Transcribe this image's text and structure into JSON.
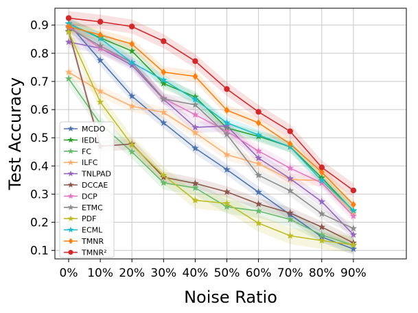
{
  "chart_data": {
    "type": "line",
    "title": "",
    "xlabel": "Noise Ratio",
    "ylabel": "Test Accuracy",
    "categories": [
      "0%",
      "10%",
      "20%",
      "30%",
      "40%",
      "50%",
      "60%",
      "70%",
      "80%",
      "90%"
    ],
    "yticks": [
      "0.1",
      "0.2",
      "0.3",
      "0.4",
      "0.5",
      "0.6",
      "0.7",
      "0.8",
      "0.9"
    ],
    "ylim": [
      0.07,
      0.96
    ],
    "grid": true,
    "legend_position": "lower-left",
    "series": [
      {
        "name": "MCDO",
        "marker": "star",
        "color": "#4c72b0",
        "values": [
          0.905,
          0.775,
          0.648,
          0.553,
          0.463,
          0.387,
          0.307,
          0.227,
          0.148,
          0.105
        ],
        "spread": 0.02
      },
      {
        "name": "IEDL",
        "marker": "star",
        "color": "#2ca02c",
        "values": [
          0.905,
          0.855,
          0.808,
          0.693,
          0.645,
          0.535,
          0.505,
          0.468,
          0.358,
          0.24
        ],
        "spread": 0.02
      },
      {
        "name": "FC",
        "marker": "star",
        "color": "#66bb6a",
        "values": [
          0.71,
          0.55,
          0.45,
          0.34,
          0.322,
          0.255,
          0.24,
          0.21,
          0.155,
          0.118
        ],
        "spread": 0.025
      },
      {
        "name": "ILFC",
        "marker": "star",
        "color": "#fdae6b",
        "values": [
          0.733,
          0.665,
          0.612,
          0.59,
          0.518,
          0.44,
          0.408,
          0.352,
          0.348,
          0.233
        ],
        "spread": 0.02
      },
      {
        "name": "TNLPAD",
        "marker": "star",
        "color": "#9467bd",
        "values": [
          0.84,
          0.818,
          0.758,
          0.637,
          0.537,
          0.542,
          0.428,
          0.355,
          0.273,
          0.156
        ],
        "spread": 0.02
      },
      {
        "name": "DCCAE",
        "marker": "star",
        "color": "#8c564b",
        "values": [
          0.878,
          0.47,
          0.478,
          0.36,
          0.338,
          0.308,
          0.265,
          0.233,
          0.183,
          0.127
        ],
        "spread": 0.02
      },
      {
        "name": "DCP",
        "marker": "star",
        "color": "#e377c2",
        "values": [
          0.895,
          0.818,
          0.768,
          0.64,
          0.582,
          0.523,
          0.453,
          0.392,
          0.34,
          0.222
        ],
        "spread": 0.02
      },
      {
        "name": "ETMC",
        "marker": "star",
        "color": "#8c8c8c",
        "values": [
          0.89,
          0.826,
          0.767,
          0.638,
          0.617,
          0.512,
          0.367,
          0.312,
          0.23,
          0.178
        ],
        "spread": 0.02
      },
      {
        "name": "PDF",
        "marker": "star",
        "color": "#bcbd22",
        "values": [
          0.875,
          0.627,
          0.475,
          0.367,
          0.278,
          0.267,
          0.197,
          0.152,
          0.135,
          0.12
        ],
        "spread": 0.03
      },
      {
        "name": "ECML",
        "marker": "star",
        "color": "#17becf",
        "values": [
          0.905,
          0.853,
          0.767,
          0.705,
          0.636,
          0.553,
          0.51,
          0.468,
          0.348,
          0.242
        ],
        "spread": 0.02
      },
      {
        "name": "TMNR",
        "marker": "diamond",
        "color": "#ff7f0e",
        "values": [
          0.895,
          0.865,
          0.833,
          0.733,
          0.718,
          0.598,
          0.553,
          0.478,
          0.378,
          0.263
        ],
        "spread": 0.02
      },
      {
        "name": "TMNR²",
        "marker": "circle",
        "color": "#d62728",
        "values": [
          0.925,
          0.912,
          0.895,
          0.843,
          0.772,
          0.673,
          0.592,
          0.523,
          0.395,
          0.313
        ],
        "spread": 0.025
      }
    ]
  }
}
